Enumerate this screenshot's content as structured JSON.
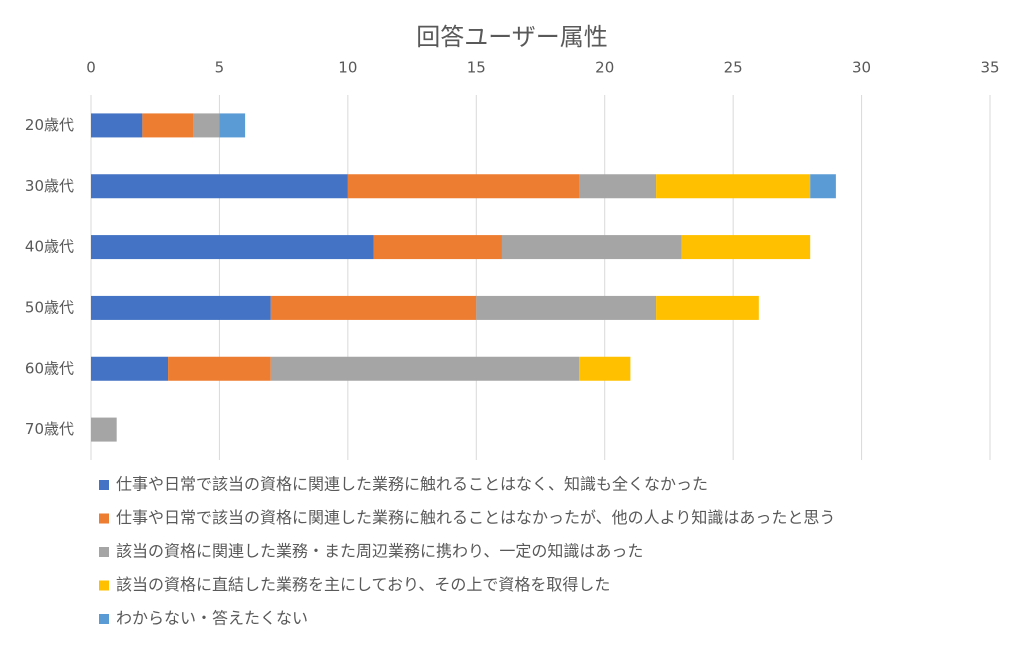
{
  "chart_data": {
    "type": "stacked-barh",
    "title": "回答ユーザー属性",
    "categories": [
      "20歳代",
      "30歳代",
      "40歳代",
      "50歳代",
      "60歳代",
      "70歳代"
    ],
    "series": [
      {
        "name": "仕事や日常で該当の資格に関連した業務に触れることはなく、知識も全くなかった",
        "color": "#4472c4",
        "values": [
          2,
          10,
          11,
          7,
          3,
          0
        ]
      },
      {
        "name": "仕事や日常で該当の資格に関連した業務に触れることはなかったが、他の人より知識はあったと思う",
        "color": "#ed7d31",
        "values": [
          2,
          9,
          5,
          8,
          4,
          0
        ]
      },
      {
        "name": "該当の資格に関連した業務・また周辺業務に携わり、一定の知識はあった",
        "color": "#a5a5a5",
        "values": [
          1,
          3,
          7,
          7,
          12,
          1
        ]
      },
      {
        "name": "該当の資格に直結した業務を主にしており、その上で資格を取得した",
        "color": "#ffc000",
        "values": [
          0,
          6,
          5,
          4,
          2,
          0
        ]
      },
      {
        "name": "わからない・答えたくない",
        "color": "#5b9bd5",
        "values": [
          1,
          1,
          0,
          0,
          0,
          0
        ]
      }
    ],
    "xlim": [
      0,
      35
    ],
    "xticks": [
      0,
      5,
      10,
      15,
      20,
      25,
      30,
      35
    ],
    "grid": true,
    "legend": "bottom"
  }
}
